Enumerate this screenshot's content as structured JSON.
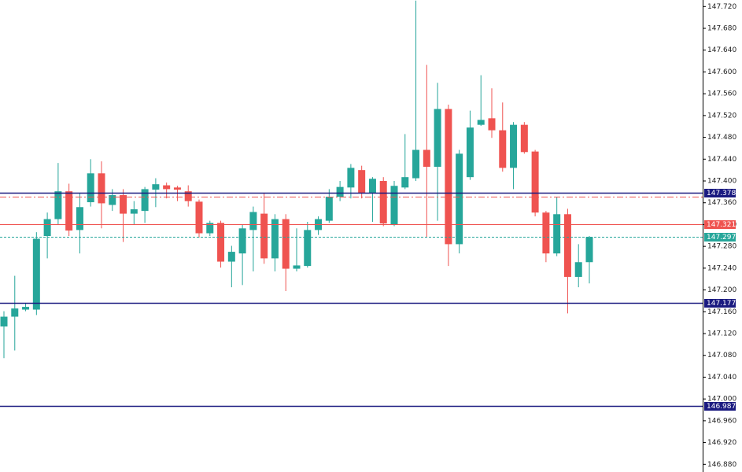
{
  "chart_data": {
    "type": "candlestick",
    "up_color": "#26a69a",
    "down_color": "#ef5350",
    "open": [
      147.133,
      147.151,
      147.164,
      147.164,
      147.299,
      147.33,
      147.381,
      147.31,
      147.361,
      147.414,
      147.356,
      147.374,
      147.34,
      147.345,
      147.384,
      147.392,
      147.388,
      147.381,
      147.362,
      147.304,
      147.323,
      147.252,
      147.267,
      147.31,
      147.34,
      147.258,
      147.33,
      147.239,
      147.244,
      147.31,
      147.327,
      147.371,
      147.388,
      147.42,
      147.378,
      147.4,
      147.32,
      147.388,
      147.405,
      147.457,
      147.426,
      147.532,
      147.284,
      147.407,
      147.503,
      147.515,
      147.493,
      147.424,
      147.503,
      147.454,
      147.342,
      147.267,
      147.339,
      147.224,
      147.251
    ],
    "high": [
      147.161,
      147.226,
      147.176,
      147.306,
      147.342,
      147.433,
      147.395,
      147.378,
      147.44,
      147.436,
      147.385,
      147.385,
      147.363,
      147.389,
      147.405,
      147.397,
      147.391,
      147.392,
      147.366,
      147.327,
      147.327,
      147.281,
      147.32,
      147.353,
      147.378,
      147.339,
      147.339,
      147.313,
      147.325,
      147.335,
      147.385,
      147.4,
      147.431,
      147.428,
      147.407,
      147.407,
      147.4,
      147.486,
      147.731,
      147.613,
      147.58,
      147.54,
      147.457,
      147.529,
      147.594,
      147.57,
      147.544,
      147.508,
      147.508,
      147.457,
      147.345,
      147.371,
      147.349,
      147.284,
      147.299
    ],
    "low": [
      147.075,
      147.089,
      147.161,
      147.154,
      147.258,
      147.32,
      147.299,
      147.267,
      147.353,
      147.313,
      147.345,
      147.288,
      147.32,
      147.323,
      147.352,
      147.368,
      147.363,
      147.353,
      147.296,
      147.299,
      147.241,
      147.205,
      147.209,
      147.234,
      147.248,
      147.234,
      147.198,
      147.234,
      147.241,
      147.301,
      147.323,
      147.363,
      147.368,
      147.368,
      147.325,
      147.317,
      147.317,
      147.385,
      147.4,
      147.296,
      147.327,
      147.244,
      147.267,
      147.402,
      147.501,
      147.479,
      147.417,
      147.385,
      147.45,
      147.335,
      147.251,
      147.262,
      147.157,
      147.205,
      147.212
    ],
    "close": [
      147.151,
      147.166,
      147.169,
      147.294,
      147.33,
      147.381,
      147.309,
      147.352,
      147.414,
      147.359,
      147.374,
      147.34,
      147.348,
      147.385,
      147.394,
      147.385,
      147.384,
      147.363,
      147.304,
      147.323,
      147.252,
      147.27,
      147.313,
      147.343,
      147.258,
      147.33,
      147.239,
      147.245,
      147.31,
      147.33,
      147.371,
      147.389,
      147.424,
      147.378,
      147.404,
      147.322,
      147.391,
      147.407,
      147.457,
      147.426,
      147.532,
      147.284,
      147.45,
      147.498,
      147.512,
      147.493,
      147.424,
      147.503,
      147.453,
      147.342,
      147.267,
      147.339,
      147.224,
      147.251,
      147.297
    ],
    "ylim": [
      146.866,
      147.732
    ],
    "yticks": [
      {
        "value": 146.88,
        "label": "146.880"
      },
      {
        "value": 146.92,
        "label": "146.920"
      },
      {
        "value": 146.96,
        "label": "146.960"
      },
      {
        "value": 147.0,
        "label": "147.000"
      },
      {
        "value": 147.04,
        "label": "147.040"
      },
      {
        "value": 147.08,
        "label": "147.080"
      },
      {
        "value": 147.12,
        "label": "147.120"
      },
      {
        "value": 147.16,
        "label": "147.160"
      },
      {
        "value": 147.2,
        "label": "147.200"
      },
      {
        "value": 147.24,
        "label": "147.240"
      },
      {
        "value": 147.28,
        "label": "147.280"
      },
      {
        "value": 147.32,
        "label": "147.320"
      },
      {
        "value": 147.36,
        "label": "147.360"
      },
      {
        "value": 147.4,
        "label": "147.400"
      },
      {
        "value": 147.44,
        "label": "147.440"
      },
      {
        "value": 147.48,
        "label": "147.480"
      },
      {
        "value": 147.52,
        "label": "147.520"
      },
      {
        "value": 147.56,
        "label": "147.560"
      },
      {
        "value": 147.6,
        "label": "147.600"
      },
      {
        "value": 147.64,
        "label": "147.640"
      },
      {
        "value": 147.68,
        "label": "147.680"
      },
      {
        "value": 147.72,
        "label": "147.720"
      }
    ],
    "levels": [
      {
        "value": 147.378,
        "color": "#1a1a80",
        "style": "solid",
        "show_label": true
      },
      {
        "value": 147.371,
        "color": "#ef5350",
        "style": "dashdot",
        "show_label": false
      },
      {
        "value": 147.321,
        "color": "#ef5350",
        "style": "solid",
        "show_label": true
      },
      {
        "value": 147.297,
        "color": "#26a69a",
        "style": "dashed",
        "show_label": true
      },
      {
        "value": 147.177,
        "color": "#1a1a80",
        "style": "solid",
        "show_label": true
      },
      {
        "value": 146.987,
        "color": "#1a1a80",
        "style": "solid",
        "show_label": true
      }
    ]
  }
}
